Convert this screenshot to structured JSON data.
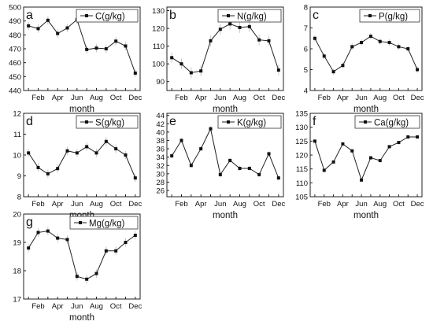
{
  "chart_data": [
    {
      "type": "line",
      "panel_label": "a",
      "series": [
        {
          "name": "C(g/kg)",
          "values": [
            486.5,
            484.5,
            490.5,
            481.0,
            485.0,
            491.0,
            469.5,
            470.5,
            470.0,
            475.5,
            472.0,
            452.5
          ]
        }
      ],
      "error": [
        3,
        3,
        3,
        3,
        3,
        3,
        3,
        3,
        3,
        3,
        3,
        3
      ],
      "xticks": [
        "Feb",
        "Apr",
        "Jun",
        "Aug",
        "Oct",
        "Dec"
      ],
      "xlabel": "month",
      "ylim": [
        440,
        500
      ],
      "yticks": [
        "440",
        "450",
        "460",
        "470",
        "480",
        "490",
        "500"
      ]
    },
    {
      "type": "line",
      "panel_label": "b",
      "series": [
        {
          "name": "N(g/kg)",
          "values": [
            103.5,
            100.0,
            95.0,
            96.0,
            113.0,
            119.5,
            122.5,
            120.5,
            121.0,
            113.5,
            113.0,
            96.5
          ]
        }
      ],
      "error": [
        3,
        3,
        3,
        3,
        3,
        3,
        3,
        3,
        3,
        3,
        3,
        3
      ],
      "xticks": [
        "Feb",
        "Apr",
        "Jun",
        "Aug",
        "Oct",
        "Dec"
      ],
      "xlabel": "month",
      "ylim": [
        85,
        132
      ],
      "yticks": [
        "90",
        "100",
        "110",
        "120",
        "130"
      ]
    },
    {
      "type": "line",
      "panel_label": "c",
      "series": [
        {
          "name": "P(g/kg)",
          "values": [
            6.5,
            5.65,
            4.9,
            5.2,
            6.1,
            6.3,
            6.6,
            6.35,
            6.3,
            6.1,
            6.0,
            5.0
          ]
        }
      ],
      "error": [
        0.15,
        0.15,
        0.15,
        0.15,
        0.15,
        0.15,
        0.15,
        0.15,
        0.15,
        0.15,
        0.15,
        0.15
      ],
      "xticks": [
        "Feb",
        "Apr",
        "Jun",
        "Aug",
        "Oct",
        "Dec"
      ],
      "xlabel": "month",
      "ylim": [
        4,
        8
      ],
      "yticks": [
        "4",
        "5",
        "6",
        "7",
        "8"
      ]
    },
    {
      "type": "line",
      "panel_label": "d",
      "series": [
        {
          "name": "S(g/kg)",
          "values": [
            10.1,
            9.4,
            9.1,
            9.35,
            10.2,
            10.1,
            10.4,
            10.1,
            10.65,
            10.3,
            10.0,
            8.9
          ]
        }
      ],
      "error": [
        0.2,
        0.2,
        0.2,
        0.2,
        0.2,
        0.2,
        0.2,
        0.2,
        0.2,
        0.2,
        0.2,
        0.2
      ],
      "xticks": [
        "Feb",
        "Apr",
        "Jun",
        "Aug",
        "Oct",
        "Dec"
      ],
      "xlabel": "month",
      "ylim": [
        8,
        12
      ],
      "yticks": [
        "8",
        "9",
        "10",
        "11",
        "12"
      ]
    },
    {
      "type": "line",
      "panel_label": "e",
      "series": [
        {
          "name": "K(g/kg)",
          "values": [
            34.3,
            38.0,
            32.0,
            36.0,
            40.8,
            29.8,
            33.2,
            31.3,
            31.3,
            29.8,
            34.8,
            29.0
          ]
        }
      ],
      "error": [
        0.6,
        0.6,
        0.6,
        0.6,
        0.6,
        0.6,
        0.6,
        0.6,
        0.6,
        0.6,
        0.6,
        0.6
      ],
      "xticks": [
        "Feb",
        "Apr",
        "Jun",
        "Aug",
        "Oct",
        "Dec"
      ],
      "xlabel": "month",
      "ylim": [
        24.5,
        44.5
      ],
      "yticks": [
        "26",
        "28",
        "30",
        "32",
        "34",
        "36",
        "38",
        "40",
        "42",
        "44"
      ]
    },
    {
      "type": "line",
      "panel_label": "f",
      "series": [
        {
          "name": "Ca(g/kg)",
          "values": [
            125.0,
            114.5,
            117.5,
            124.0,
            121.5,
            111.0,
            119.0,
            118.0,
            123.0,
            124.5,
            126.5,
            126.5
          ]
        }
      ],
      "error": [
        0.5,
        0.5,
        0.5,
        0.5,
        0.5,
        0.5,
        0.5,
        0.5,
        0.5,
        0.5,
        0.5,
        0.5
      ],
      "xticks": [
        "Feb",
        "Apr",
        "Jun",
        "Aug",
        "Oct",
        "Dec"
      ],
      "xlabel": "month",
      "ylim": [
        105,
        135
      ],
      "yticks": [
        "105",
        "110",
        "115",
        "120",
        "125",
        "130",
        "135"
      ]
    },
    {
      "type": "line",
      "panel_label": "g",
      "series": [
        {
          "name": "Mg(g/kg)",
          "values": [
            18.8,
            19.35,
            19.4,
            19.15,
            19.1,
            17.8,
            17.7,
            17.9,
            18.7,
            18.7,
            19.0,
            19.25
          ]
        }
      ],
      "error": [
        0.15,
        0.15,
        0.15,
        0.15,
        0.15,
        0.15,
        0.15,
        0.15,
        0.15,
        0.15,
        0.15,
        0.15
      ],
      "xticks": [
        "Feb",
        "Apr",
        "Jun",
        "Aug",
        "Oct",
        "Dec"
      ],
      "xlabel": "month",
      "ylim": [
        17,
        20
      ],
      "yticks": [
        "17",
        "18",
        "19",
        "20"
      ]
    }
  ]
}
